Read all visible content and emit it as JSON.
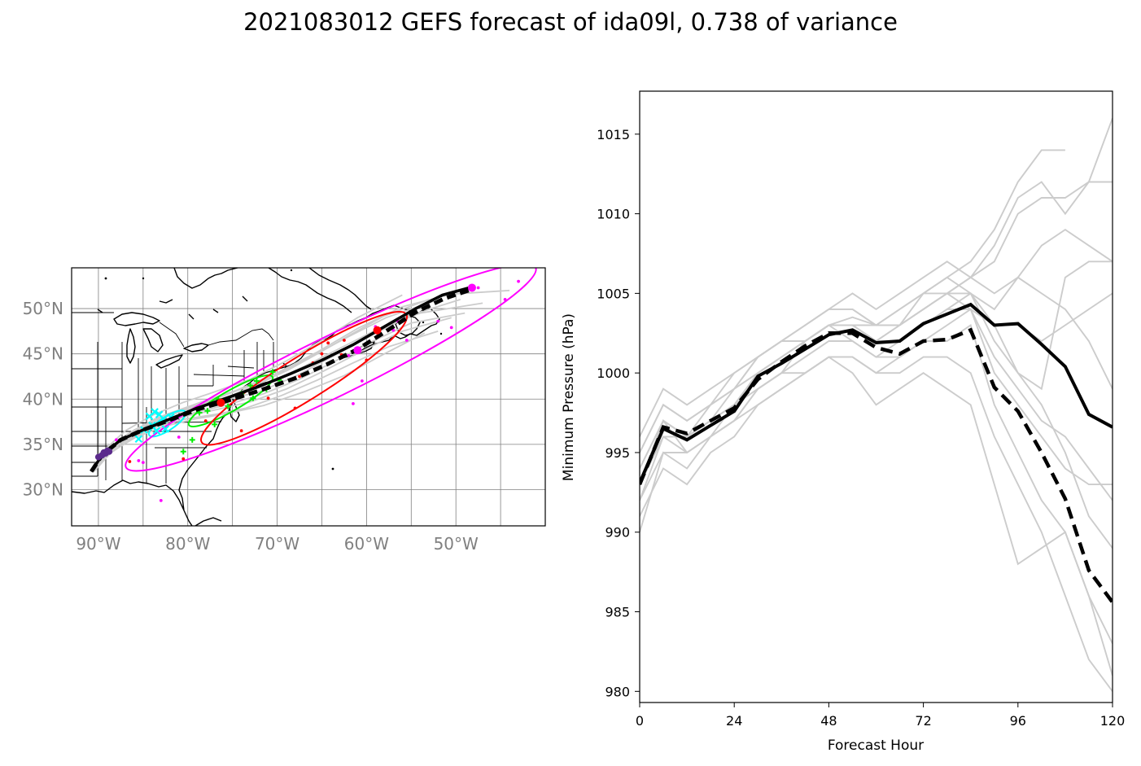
{
  "title": "2021083012 GEFS forecast of ida09l, 0.738 of variance",
  "colors": {
    "ensemble": "#cccccc",
    "mean": "#000000",
    "pc_mode": "#000000",
    "ellipse_24": "#00ffff",
    "ellipse_48": "#00ee00",
    "ellipse_72": "#ff0000",
    "ellipse_96": "#ff00ff",
    "start": "#5b2a8c",
    "coast": "#000000",
    "grid": "#808080"
  },
  "map": {
    "lon_range": [
      -93,
      -40
    ],
    "lat_range": [
      26,
      54.5
    ],
    "lon_ticks": [
      -90,
      -80,
      -70,
      -60,
      -50
    ],
    "lon_tick_labels": [
      "90°W",
      "80°W",
      "70°W",
      "60°W",
      "50°W"
    ],
    "lat_ticks": [
      30,
      35,
      40,
      45,
      50
    ],
    "lat_tick_labels": [
      "30°N",
      "35°N",
      "40°N",
      "45°N",
      "50°N"
    ],
    "grid_lon": [
      -90,
      -85,
      -80,
      -75,
      -70,
      -65,
      -60,
      -55,
      -50,
      -45
    ],
    "grid_lat": [
      30,
      35,
      40,
      45,
      50
    ],
    "mean_track": [
      [
        -90.8,
        32.0
      ],
      [
        -89.6,
        33.8
      ],
      [
        -87.5,
        35.5
      ],
      [
        -85.0,
        36.6
      ],
      [
        -82.0,
        37.8
      ],
      [
        -79.0,
        39.0
      ],
      [
        -76.0,
        40.0
      ],
      [
        -72.0,
        41.4
      ],
      [
        -68.5,
        42.8
      ],
      [
        -65.0,
        44.3
      ],
      [
        -61.5,
        46.0
      ],
      [
        -58.0,
        48.0
      ],
      [
        -54.5,
        50.0
      ],
      [
        -51.5,
        51.5
      ],
      [
        -48.5,
        52.3
      ]
    ],
    "pc_track": [
      [
        -90.8,
        32.0
      ],
      [
        -89.6,
        33.8
      ],
      [
        -87.5,
        35.5
      ],
      [
        -85.0,
        36.6
      ],
      [
        -82.0,
        37.7
      ],
      [
        -78.8,
        38.9
      ],
      [
        -75.6,
        39.8
      ],
      [
        -71.8,
        41.0
      ],
      [
        -68.0,
        42.3
      ],
      [
        -64.5,
        43.8
      ],
      [
        -61.0,
        45.5
      ],
      [
        -57.8,
        47.5
      ],
      [
        -54.5,
        49.6
      ],
      [
        -51.3,
        51.1
      ],
      [
        -48.3,
        52.1
      ]
    ],
    "ensemble_tracks": [
      [
        [
          -90.5,
          32.0
        ],
        [
          -88.5,
          34.2
        ],
        [
          -85.8,
          35.8
        ],
        [
          -82.6,
          37.0
        ],
        [
          -79.2,
          37.8
        ],
        [
          -75.7,
          38.4
        ],
        [
          -71.5,
          39.3
        ],
        [
          -67.0,
          40.8
        ],
        [
          -62.5,
          42.6
        ],
        [
          -58.0,
          45.0
        ],
        [
          -53.5,
          47.3
        ]
      ],
      [
        [
          -90.7,
          32.0
        ],
        [
          -88.8,
          34.6
        ],
        [
          -86.0,
          36.6
        ],
        [
          -82.7,
          38.2
        ],
        [
          -78.7,
          39.6
        ],
        [
          -74.5,
          41.0
        ],
        [
          -70.0,
          42.9
        ],
        [
          -65.5,
          45.2
        ],
        [
          -61.0,
          47.8
        ],
        [
          -56.0,
          50.2
        ],
        [
          -50.5,
          51.6
        ],
        [
          -44.0,
          52.0
        ]
      ],
      [
        [
          -90.8,
          32.0
        ],
        [
          -89.0,
          34.3
        ],
        [
          -86.5,
          36.2
        ],
        [
          -83.5,
          37.9
        ],
        [
          -80.0,
          39.1
        ],
        [
          -76.0,
          39.9
        ],
        [
          -72.0,
          40.8
        ],
        [
          -68.0,
          42.5
        ],
        [
          -64.0,
          44.6
        ],
        [
          -59.5,
          47.0
        ],
        [
          -55.0,
          49.3
        ],
        [
          -49.5,
          51.0
        ]
      ],
      [
        [
          -90.6,
          32.0
        ],
        [
          -88.7,
          34.0
        ],
        [
          -86.2,
          35.7
        ],
        [
          -83.2,
          37.2
        ],
        [
          -79.8,
          38.2
        ],
        [
          -76.5,
          38.9
        ],
        [
          -73.0,
          39.7
        ],
        [
          -69.0,
          41.1
        ],
        [
          -65.0,
          43.0
        ],
        [
          -60.5,
          45.3
        ],
        [
          -56.0,
          47.5
        ],
        [
          -50.5,
          49.0
        ]
      ],
      [
        [
          -90.8,
          32.0
        ],
        [
          -89.2,
          34.5
        ],
        [
          -87.0,
          36.5
        ],
        [
          -84.0,
          38.2
        ],
        [
          -80.6,
          39.6
        ],
        [
          -77.0,
          40.8
        ],
        [
          -73.0,
          42.2
        ],
        [
          -69.0,
          44.2
        ],
        [
          -65.0,
          46.5
        ],
        [
          -61.0,
          49.0
        ],
        [
          -56.0,
          51.5
        ]
      ],
      [
        [
          -90.7,
          32.0
        ],
        [
          -88.9,
          34.1
        ],
        [
          -86.3,
          35.9
        ],
        [
          -83.0,
          37.5
        ],
        [
          -79.5,
          38.8
        ],
        [
          -75.8,
          40.1
        ],
        [
          -72.3,
          41.6
        ],
        [
          -68.8,
          43.2
        ],
        [
          -65.5,
          45.0
        ],
        [
          -62.0,
          47.0
        ],
        [
          -58.0,
          49.2
        ],
        [
          -53.0,
          51.0
        ]
      ],
      [
        [
          -90.8,
          32.0
        ],
        [
          -89.1,
          34.0
        ],
        [
          -86.6,
          35.6
        ],
        [
          -83.6,
          36.9
        ],
        [
          -80.3,
          37.8
        ],
        [
          -77.0,
          38.3
        ],
        [
          -73.5,
          39.0
        ],
        [
          -69.5,
          40.4
        ],
        [
          -65.5,
          42.1
        ],
        [
          -61.5,
          44.0
        ],
        [
          -57.5,
          45.8
        ],
        [
          -52.0,
          47.5
        ]
      ],
      [
        [
          -90.6,
          32.0
        ],
        [
          -88.6,
          34.4
        ],
        [
          -85.9,
          36.4
        ],
        [
          -82.5,
          38.0
        ],
        [
          -78.9,
          39.3
        ],
        [
          -75.0,
          40.4
        ],
        [
          -71.0,
          41.8
        ],
        [
          -67.0,
          43.6
        ],
        [
          -63.0,
          45.6
        ],
        [
          -59.0,
          47.6
        ],
        [
          -54.0,
          49.5
        ],
        [
          -47.0,
          50.6
        ]
      ],
      [
        [
          -90.8,
          32.0
        ],
        [
          -89.3,
          34.2
        ],
        [
          -86.8,
          36.1
        ],
        [
          -83.8,
          37.6
        ],
        [
          -80.4,
          38.9
        ],
        [
          -77.0,
          40.0
        ],
        [
          -73.5,
          41.3
        ],
        [
          -69.8,
          42.9
        ],
        [
          -66.0,
          44.8
        ],
        [
          -62.0,
          46.9
        ],
        [
          -57.8,
          49.0
        ],
        [
          -52.5,
          50.8
        ]
      ],
      [
        [
          -90.7,
          32.0
        ],
        [
          -88.8,
          34.3
        ],
        [
          -86.0,
          36.0
        ],
        [
          -82.8,
          37.4
        ],
        [
          -79.3,
          38.5
        ],
        [
          -75.5,
          39.4
        ],
        [
          -71.5,
          40.6
        ],
        [
          -67.5,
          42.2
        ],
        [
          -63.5,
          44.2
        ],
        [
          -59.5,
          46.3
        ],
        [
          -55.0,
          48.4
        ],
        [
          -49.0,
          49.5
        ]
      ]
    ],
    "ellipses": [
      {
        "hour": 24,
        "center": [
          -82.3,
          37.3
        ],
        "a": 2.4,
        "b": 0.75,
        "angle": 33
      },
      {
        "hour": 48,
        "center": [
          -75.2,
          39.8
        ],
        "a": 5.4,
        "b": 1.1,
        "angle": 30
      },
      {
        "hour": 72,
        "center": [
          -67.0,
          42.3
        ],
        "a": 13.5,
        "b": 2.4,
        "angle": 32
      },
      {
        "hour": 96,
        "center": [
          -64.0,
          43.5
        ],
        "a": 25.5,
        "b": 3.3,
        "angle": 26
      }
    ],
    "markers": [
      {
        "hour": 24,
        "points": [
          [
            -83.7,
            38.6
          ],
          [
            -84.0,
            37.1
          ],
          [
            -82.7,
            37.8
          ],
          [
            -84.9,
            36.6
          ],
          [
            -83.2,
            38.3
          ],
          [
            -81.9,
            38.0
          ],
          [
            -85.5,
            35.6
          ],
          [
            -82.5,
            36.7
          ],
          [
            -84.3,
            38.1
          ],
          [
            -83.5,
            36.5
          ]
        ]
      },
      {
        "hour": 48,
        "points": [
          [
            -75.5,
            39.2
          ],
          [
            -73.0,
            41.5
          ],
          [
            -71.2,
            41.1
          ],
          [
            -77.8,
            38.7
          ],
          [
            -72.3,
            42.0
          ],
          [
            -74.0,
            40.6
          ],
          [
            -76.6,
            40.0
          ],
          [
            -70.5,
            43.0
          ],
          [
            -79.5,
            35.5
          ],
          [
            -80.5,
            34.2
          ],
          [
            -78.7,
            38.5
          ],
          [
            -72.7,
            40.1
          ],
          [
            -69.8,
            42.1
          ],
          [
            -77.0,
            37.2
          ]
        ]
      },
      {
        "hour": 72,
        "points": [
          [
            -65.0,
            45.0
          ],
          [
            -62.5,
            46.5
          ],
          [
            -60.0,
            44.3
          ],
          [
            -58.7,
            47.6
          ],
          [
            -64.3,
            46.2
          ],
          [
            -66.0,
            44.0
          ],
          [
            -62.8,
            44.9
          ],
          [
            -68.0,
            39.0
          ],
          [
            -71.0,
            40.1
          ],
          [
            -74.0,
            36.5
          ],
          [
            -78.0,
            37.6
          ],
          [
            -80.5,
            33.4
          ],
          [
            -86.5,
            33.1
          ],
          [
            -61.5,
            45.3
          ],
          [
            -67.5,
            42.5
          ]
        ]
      },
      {
        "hour": 96,
        "points": [
          [
            -59.0,
            48.0
          ],
          [
            -57.0,
            47.6
          ],
          [
            -55.5,
            46.5
          ],
          [
            -52.0,
            48.6
          ],
          [
            -44.5,
            51.0
          ],
          [
            -43.0,
            53.0
          ],
          [
            -47.5,
            52.3
          ],
          [
            -60.5,
            42.0
          ],
          [
            -61.5,
            39.5
          ],
          [
            -50.5,
            47.9
          ],
          [
            -56.5,
            48.6
          ],
          [
            -88.0,
            35.5
          ],
          [
            -85.5,
            33.2
          ],
          [
            -83.0,
            28.8
          ],
          [
            -81.0,
            35.8
          ],
          [
            -85.0,
            33.0
          ],
          [
            -62.0,
            44.8
          ]
        ]
      }
    ],
    "large_dots": [
      {
        "lonlat": [
          -58.8,
          47.6
        ],
        "color": "#ff0000"
      },
      {
        "lonlat": [
          -61.0,
          45.4
        ],
        "color": "#ff00ff"
      },
      {
        "lonlat": [
          -76.3,
          39.6
        ],
        "color": "#ff0000"
      },
      {
        "lonlat": [
          -48.2,
          52.3
        ],
        "color": "#ff00ff"
      }
    ],
    "start_points": [
      [
        -90.0,
        33.6
      ],
      [
        -89.6,
        33.8
      ],
      [
        -89.2,
        34.0
      ],
      [
        -88.8,
        34.2
      ],
      [
        -89.4,
        34.1
      ],
      [
        -89.0,
        34.3
      ]
    ]
  },
  "chart_data": {
    "type": "line",
    "xlabel": "Forecast Hour",
    "ylabel": "Minimum Pressure (hPa)",
    "xlim": [
      0,
      120
    ],
    "ylim": [
      979.3,
      1017.7
    ],
    "x_ticks": [
      0,
      24,
      48,
      72,
      96,
      120
    ],
    "y_ticks": [
      980,
      985,
      990,
      995,
      1000,
      1005,
      1010,
      1015
    ],
    "x": [
      0,
      6,
      12,
      18,
      24,
      30,
      36,
      42,
      48,
      54,
      60,
      66,
      72,
      78,
      84,
      90,
      96,
      102,
      108,
      114,
      120
    ],
    "series": [
      {
        "role": "mean",
        "values": [
          993.1,
          996.5,
          995.8,
          996.7,
          997.6,
          999.8,
          1000.6,
          1001.5,
          1002.4,
          1002.7,
          1001.9,
          1002.0,
          1003.1,
          1003.7,
          1004.3,
          1003.0,
          1003.1,
          1001.8,
          1000.4,
          997.4,
          996.6
        ]
      },
      {
        "role": "pc_mode",
        "values": [
          993.0,
          996.6,
          996.2,
          997.0,
          997.8,
          999.6,
          1000.7,
          1001.7,
          1002.5,
          1002.5,
          1001.6,
          1001.2,
          1002.0,
          1002.1,
          1002.7,
          999.1,
          997.6,
          995.0,
          992.1,
          987.6,
          985.6
        ]
      }
    ],
    "ensemble": [
      [
        990.0,
        995.0,
        994.0,
        996.0,
        998.0,
        1000.0,
        1001.0,
        1002.0,
        1003.0,
        1003.5,
        1003.0,
        1004.0,
        1005.0,
        1006.0,
        1007.0,
        1009.0,
        1012.0,
        1014.0,
        1014.0
      ],
      [
        993.0,
        997.0,
        995.0,
        996.0,
        997.0,
        999.0,
        1000.0,
        1002.0,
        1003.0,
        1003.0,
        1002.0,
        1003.0,
        1004.0,
        1005.0,
        1006.0,
        1008.0,
        1011.0,
        1012.0,
        1010.0,
        1012.0,
        1016.0
      ],
      [
        995.0,
        998.0,
        997.0,
        998.0,
        1000.0,
        1001.0,
        1002.0,
        1003.0,
        1004.0,
        1005.0,
        1004.0,
        1005.0,
        1006.0,
        1007.0,
        1006.0,
        1007.0,
        1010.0,
        1011.0,
        1011.0,
        1012.0,
        1012.0
      ],
      [
        992.0,
        996.0,
        996.0,
        997.0,
        998.0,
        1000.0,
        1001.0,
        1002.0,
        1003.0,
        1003.0,
        1002.0,
        1003.0,
        1004.0,
        1005.0,
        1005.0,
        1004.0,
        1006.0,
        1008.0,
        1009.0,
        1008.0,
        1007.0
      ],
      [
        994.0,
        997.0,
        996.0,
        997.0,
        999.0,
        1001.0,
        1002.0,
        1002.0,
        1003.0,
        1002.0,
        1001.0,
        1002.0,
        1003.0,
        1004.0,
        1005.0,
        1003.0,
        1000.0,
        999.0,
        1006.0,
        1007.0,
        1007.0
      ],
      [
        993.0,
        996.0,
        995.0,
        996.0,
        997.0,
        999.0,
        1000.0,
        1001.0,
        1002.0,
        1002.0,
        1001.0,
        1001.0,
        1002.0,
        1003.0,
        1004.0,
        1000.0,
        998.0,
        996.0,
        994.0,
        993.0,
        993.0
      ],
      [
        991.0,
        994.0,
        993.0,
        995.0,
        996.0,
        998.0,
        999.0,
        1000.0,
        1001.0,
        1001.0,
        1000.0,
        1001.0,
        1002.0,
        1002.0,
        1003.0,
        998.0,
        995.0,
        992.0,
        990.0,
        986.0,
        983.0
      ],
      [
        995.0,
        998.0,
        997.0,
        998.0,
        999.0,
        1000.0,
        1001.0,
        1002.0,
        1003.0,
        1003.0,
        1003.0,
        1003.0,
        1005.0,
        1005.0,
        1004.0,
        1001.0,
        999.0,
        997.0,
        996.0,
        994.0,
        992.0
      ],
      [
        993.0,
        996.0,
        996.0,
        997.0,
        998.0,
        999.0,
        1000.0,
        1000.0,
        1001.0,
        1000.0,
        998.0,
        999.0,
        1000.0,
        999.0,
        998.0,
        993.0,
        988.0,
        989.0,
        990.0,
        986.0,
        981.0
      ],
      [
        994.0,
        997.0,
        996.0,
        998.0,
        999.0,
        1001.0,
        1002.0,
        1003.0,
        1004.0,
        1004.0,
        1003.0,
        1004.0,
        1005.0,
        1006.0,
        1005.0,
        1002.0,
        1000.0,
        998.0,
        995.0,
        991.0,
        989.0
      ],
      [
        992.0,
        995.0,
        995.0,
        996.0,
        997.0,
        998.0,
        999.0,
        1000.0,
        1001.0,
        1001.0,
        1000.0,
        1000.0,
        1001.0,
        1001.0,
        1000.0,
        996.0,
        993.0,
        990.0,
        986.0,
        982.0,
        980.0
      ],
      [
        993.0,
        997.0,
        996.0,
        997.0,
        998.0,
        1000.0,
        1001.0,
        1002.0,
        1003.0,
        1003.0,
        1002.0,
        1002.0,
        1003.0,
        1004.0,
        1004.0,
        1003.0,
        1003.0,
        1002.0,
        1003.0,
        1004.0,
        1005.0
      ],
      [
        996.0,
        999.0,
        998.0,
        999.0,
        1000.0,
        1001.0,
        1002.0,
        1003.0,
        1004.0,
        1004.0,
        1003.0,
        1003.0,
        1004.0,
        1005.0,
        1006.0,
        1005.0,
        1006.0,
        1005.0,
        1004.0,
        1002.0,
        999.0
      ]
    ]
  }
}
